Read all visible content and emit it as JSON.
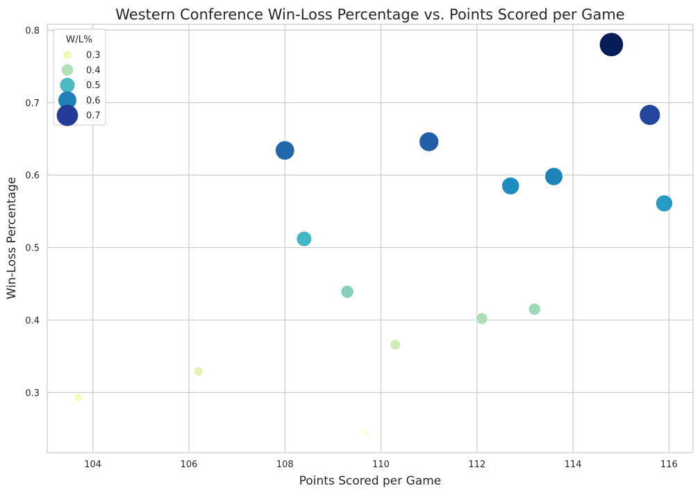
{
  "chart_data": {
    "type": "scatter",
    "title": "Western Conference Win-Loss Percentage vs. Points Scored per Game",
    "xlabel": "Points Scored per Game",
    "ylabel": "Win-Loss Percentage",
    "xlim": [
      103.05,
      116.5
    ],
    "ylim": [
      0.217,
      0.808
    ],
    "xticks": [
      "104",
      "106",
      "108",
      "110",
      "112",
      "114",
      "116"
    ],
    "yticks": [
      "0.3",
      "0.4",
      "0.5",
      "0.6",
      "0.7",
      "0.8"
    ],
    "grid": true,
    "size_and_color_encoding": "W/L%",
    "colormap": "YlGnBu",
    "legend": {
      "title": "W/L%",
      "placement": "top-left",
      "entries": [
        "0.3",
        "0.4",
        "0.5",
        "0.6",
        "0.7"
      ]
    },
    "points": [
      {
        "x": 103.7,
        "y": 0.293
      },
      {
        "x": 106.2,
        "y": 0.329
      },
      {
        "x": 108.0,
        "y": 0.634
      },
      {
        "x": 108.4,
        "y": 0.512
      },
      {
        "x": 109.3,
        "y": 0.439
      },
      {
        "x": 109.7,
        "y": 0.244
      },
      {
        "x": 110.3,
        "y": 0.366
      },
      {
        "x": 111.0,
        "y": 0.646
      },
      {
        "x": 112.1,
        "y": 0.402
      },
      {
        "x": 112.7,
        "y": 0.585
      },
      {
        "x": 113.2,
        "y": 0.415
      },
      {
        "x": 113.6,
        "y": 0.598
      },
      {
        "x": 114.8,
        "y": 0.78
      },
      {
        "x": 115.6,
        "y": 0.683
      },
      {
        "x": 115.9,
        "y": 0.561
      }
    ]
  }
}
